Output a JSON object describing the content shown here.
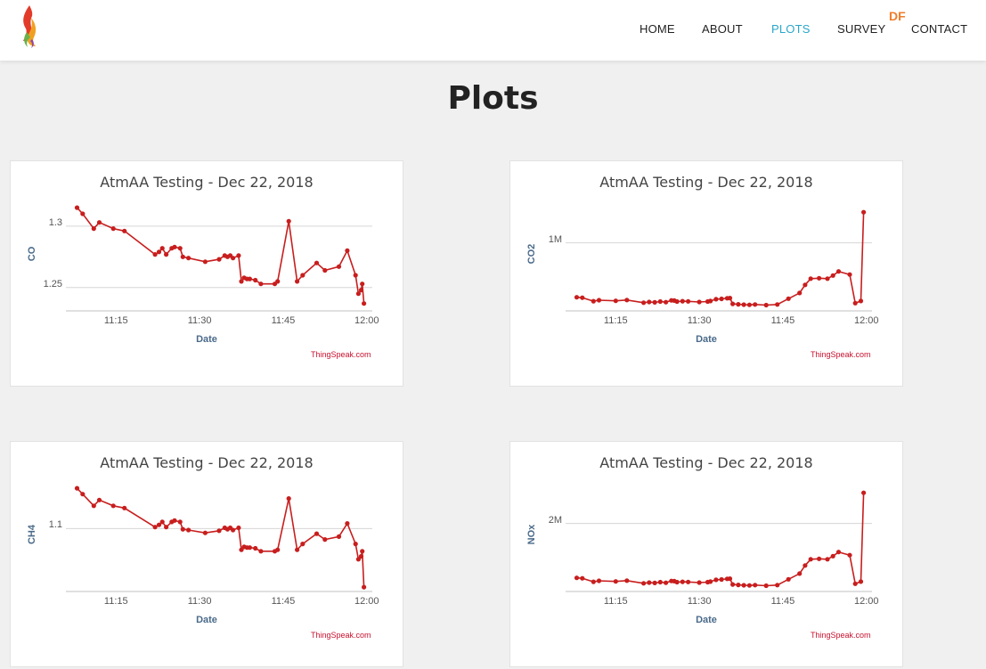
{
  "nav": {
    "items": [
      {
        "label": "HOME",
        "active": false
      },
      {
        "label": "ABOUT",
        "active": false
      },
      {
        "label": "PLOTS",
        "active": true
      },
      {
        "label": "SURVEY",
        "active": false
      },
      {
        "label": "CONTACT",
        "active": false
      }
    ],
    "badge": "DF",
    "active_color": "#2aa7c9"
  },
  "page": {
    "title": "Plots"
  },
  "series_color": "#c81e1e",
  "chart_data": [
    {
      "type": "line",
      "title": "AtmAA Testing - Dec 22, 2018",
      "xlabel": "Date",
      "ylabel": "CO",
      "credit": "ThingSpeak.com",
      "x_ticks": [
        "11:15",
        "11:30",
        "11:45",
        "12:00"
      ],
      "x_tick_values": [
        15,
        30,
        45,
        60
      ],
      "xlim": [
        6,
        61
      ],
      "y_ticks": [
        {
          "label": "1.3",
          "value": 1.3
        },
        {
          "label": "1.25",
          "value": 1.25
        }
      ],
      "ylim": [
        1.231,
        1.318
      ],
      "x": [
        8,
        9,
        11,
        12,
        14.5,
        16.5,
        22,
        22.7,
        23.3,
        24,
        25,
        25.5,
        26.5,
        27,
        28,
        31,
        33.5,
        34.5,
        35,
        35.5,
        36,
        37,
        37.5,
        38,
        38.5,
        39,
        40,
        41,
        43.5,
        44,
        46,
        47.5,
        48.5,
        51,
        52.5,
        55,
        56.5,
        58,
        58.5,
        59,
        59.2,
        59.5
      ],
      "y": [
        1.315,
        1.31,
        1.298,
        1.303,
        1.298,
        1.296,
        1.277,
        1.279,
        1.282,
        1.277,
        1.282,
        1.283,
        1.282,
        1.275,
        1.274,
        1.271,
        1.273,
        1.276,
        1.275,
        1.276,
        1.274,
        1.276,
        1.255,
        1.258,
        1.257,
        1.257,
        1.256,
        1.253,
        1.253,
        1.255,
        1.304,
        1.255,
        1.26,
        1.27,
        1.264,
        1.267,
        1.28,
        1.26,
        1.245,
        1.248,
        1.253,
        1.237
      ]
    },
    {
      "type": "line",
      "title": "AtmAA Testing - Dec 22, 2018",
      "xlabel": "Date",
      "ylabel": "CO2",
      "credit": "ThingSpeak.com",
      "x_ticks": [
        "11:15",
        "11:30",
        "11:45",
        "12:00"
      ],
      "x_tick_values": [
        15,
        30,
        45,
        60
      ],
      "xlim": [
        6,
        61
      ],
      "y_ticks": [
        {
          "label": "1M",
          "value": 1000000
        }
      ],
      "ylim": [
        650000,
        1200000
      ],
      "x": [
        8,
        9,
        11,
        12,
        15,
        17,
        20,
        21,
        22,
        23,
        24,
        25,
        25.5,
        26,
        27,
        28,
        30,
        31.5,
        32,
        33,
        34,
        35,
        35.5,
        36,
        37,
        38,
        39,
        40,
        42,
        44,
        46,
        48,
        49,
        50,
        51.5,
        53,
        54,
        55,
        57,
        58,
        59,
        59.5
      ],
      "y": [
        720000,
        718000,
        700000,
        705000,
        702000,
        706000,
        692000,
        696000,
        694000,
        698000,
        695000,
        704000,
        703000,
        698000,
        700000,
        699000,
        696000,
        698000,
        701000,
        710000,
        712000,
        715000,
        716000,
        686000,
        684000,
        682000,
        681000,
        683000,
        680000,
        683000,
        713000,
        742000,
        784000,
        816000,
        818000,
        816000,
        832000,
        853000,
        837000,
        690000,
        701000,
        1158000
      ]
    },
    {
      "type": "line",
      "title": "AtmAA Testing - Dec 22, 2018",
      "xlabel": "Date",
      "ylabel": "CH4",
      "credit": "ThingSpeak.com",
      "x_ticks": [
        "11:15",
        "11:30",
        "11:45",
        "12:00"
      ],
      "x_tick_values": [
        15,
        30,
        45,
        60
      ],
      "xlim": [
        6,
        61
      ],
      "y_ticks": [
        {
          "label": "1.1",
          "value": 1.1
        }
      ],
      "ylim": [
        1.014,
        1.16
      ],
      "x": [
        8,
        9,
        11,
        12,
        14.5,
        16.5,
        22,
        22.7,
        23.3,
        24,
        25,
        25.5,
        26.5,
        27,
        28,
        31,
        33.5,
        34.5,
        35,
        35.5,
        36,
        37,
        37.5,
        38,
        38.5,
        39,
        40,
        41,
        43.5,
        44,
        46,
        47.5,
        48.5,
        51,
        52.5,
        55,
        56.5,
        58,
        58.5,
        59,
        59.2,
        59.5
      ],
      "y": [
        1.155,
        1.147,
        1.131,
        1.139,
        1.131,
        1.128,
        1.102,
        1.105,
        1.109,
        1.102,
        1.109,
        1.111,
        1.109,
        1.099,
        1.098,
        1.094,
        1.097,
        1.101,
        1.099,
        1.101,
        1.098,
        1.101,
        1.071,
        1.075,
        1.074,
        1.074,
        1.073,
        1.069,
        1.069,
        1.071,
        1.141,
        1.071,
        1.079,
        1.093,
        1.085,
        1.089,
        1.107,
        1.079,
        1.058,
        1.062,
        1.069,
        1.02
      ]
    },
    {
      "type": "line",
      "title": "AtmAA Testing - Dec 22, 2018",
      "xlabel": "Date",
      "ylabel": "NOx",
      "credit": "ThingSpeak.com",
      "x_ticks": [
        "11:15",
        "11:30",
        "11:45",
        "12:00"
      ],
      "x_tick_values": [
        15,
        30,
        45,
        60
      ],
      "xlim": [
        6,
        61
      ],
      "y_ticks": [
        {
          "label": "2M",
          "value": 2000000
        }
      ],
      "ylim": [
        1300000,
        2400000
      ],
      "x": [
        8,
        9,
        11,
        12,
        15,
        17,
        20,
        21,
        22,
        23,
        24,
        25,
        25.5,
        26,
        27,
        28,
        30,
        31.5,
        32,
        33,
        34,
        35,
        35.5,
        36,
        37,
        38,
        39,
        40,
        42,
        44,
        46,
        48,
        49,
        50,
        51.5,
        53,
        54,
        55,
        57,
        58,
        59,
        59.5
      ],
      "y": [
        1440000,
        1436000,
        1400000,
        1410000,
        1404000,
        1412000,
        1384000,
        1392000,
        1388000,
        1396000,
        1390000,
        1408000,
        1406000,
        1396000,
        1400000,
        1398000,
        1392000,
        1396000,
        1402000,
        1420000,
        1424000,
        1430000,
        1432000,
        1372000,
        1368000,
        1364000,
        1362000,
        1366000,
        1360000,
        1366000,
        1426000,
        1484000,
        1568000,
        1632000,
        1636000,
        1632000,
        1664000,
        1706000,
        1674000,
        1380000,
        1402000,
        2316000
      ]
    }
  ]
}
